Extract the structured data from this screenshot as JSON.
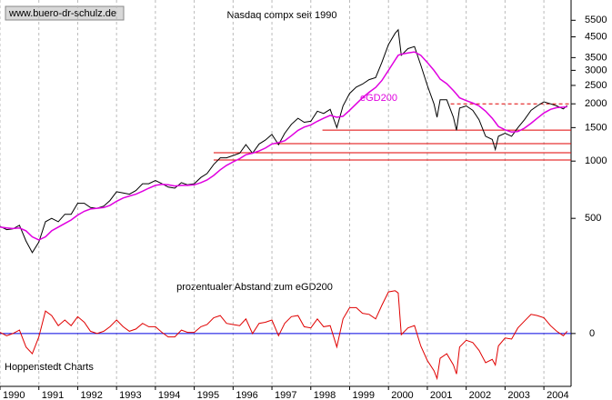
{
  "chart_data": [
    {
      "type": "line",
      "title": "Nasdaq compx seit 1990",
      "source": "www.buero-dr-schulz.de",
      "log_scale": true,
      "xlim": [
        1990,
        2004.7
      ],
      "ylim": [
        245,
        7030
      ],
      "xticks": [
        1990,
        1991,
        1992,
        1993,
        1994,
        1995,
        1996,
        1997,
        1998,
        1999,
        2000,
        2001,
        2002,
        2003,
        2004
      ],
      "yticks": [
        500,
        1000,
        1500,
        2000,
        2500,
        3000,
        3500,
        4500,
        5500
      ],
      "x": [
        1990.0,
        1990.17,
        1990.33,
        1990.5,
        1990.67,
        1990.83,
        1991.0,
        1991.17,
        1991.33,
        1991.5,
        1991.67,
        1991.83,
        1992.0,
        1992.17,
        1992.33,
        1992.5,
        1992.67,
        1992.83,
        1993.0,
        1993.17,
        1993.33,
        1993.5,
        1993.67,
        1993.83,
        1994.0,
        1994.17,
        1994.33,
        1994.5,
        1994.67,
        1994.83,
        1995.0,
        1995.17,
        1995.33,
        1995.5,
        1995.67,
        1995.83,
        1996.0,
        1996.17,
        1996.33,
        1996.5,
        1996.67,
        1996.83,
        1997.0,
        1997.17,
        1997.33,
        1997.5,
        1997.67,
        1997.83,
        1998.0,
        1998.17,
        1998.33,
        1998.5,
        1998.67,
        1998.83,
        1999.0,
        1999.17,
        1999.33,
        1999.5,
        1999.67,
        1999.83,
        2000.0,
        2000.17,
        2000.25,
        2000.33,
        2000.5,
        2000.67,
        2000.83,
        2001.0,
        2001.17,
        2001.25,
        2001.33,
        2001.5,
        2001.67,
        2001.75,
        2001.83,
        2002.0,
        2002.17,
        2002.33,
        2002.5,
        2002.67,
        2002.75,
        2002.83,
        2003.0,
        2003.17,
        2003.33,
        2003.5,
        2003.67,
        2003.83,
        2004.0,
        2004.17,
        2004.33,
        2004.5,
        2004.6
      ],
      "series": [
        {
          "color": "#000000",
          "values": [
            454,
            436,
            440,
            460,
            380,
            330,
            375,
            480,
            500,
            480,
            525,
            525,
            600,
            600,
            570,
            565,
            580,
            620,
            690,
            680,
            670,
            700,
            760,
            760,
            790,
            760,
            730,
            720,
            770,
            750,
            760,
            820,
            860,
            960,
            1040,
            1040,
            1070,
            1100,
            1220,
            1100,
            1230,
            1290,
            1380,
            1220,
            1400,
            1560,
            1680,
            1600,
            1620,
            1830,
            1780,
            1870,
            1500,
            1950,
            2270,
            2450,
            2540,
            2680,
            2750,
            3300,
            4100,
            4700,
            4900,
            3600,
            3900,
            4000,
            3200,
            2500,
            2000,
            1700,
            2100,
            2100,
            1700,
            1450,
            1900,
            1950,
            1850,
            1650,
            1350,
            1300,
            1150,
            1350,
            1400,
            1350,
            1500,
            1650,
            1850,
            1950,
            2050,
            2000,
            1950,
            1880,
            1960
          ]
        },
        {
          "name": "eGD200",
          "color": "#e000e0",
          "values": [
            450,
            445,
            442,
            445,
            430,
            400,
            385,
            400,
            430,
            450,
            470,
            490,
            520,
            545,
            560,
            565,
            570,
            585,
            615,
            640,
            655,
            670,
            695,
            720,
            745,
            755,
            750,
            740,
            745,
            745,
            750,
            770,
            795,
            840,
            900,
            950,
            990,
            1030,
            1080,
            1100,
            1130,
            1170,
            1230,
            1250,
            1280,
            1360,
            1450,
            1510,
            1550,
            1620,
            1680,
            1740,
            1700,
            1720,
            1850,
            2000,
            2150,
            2300,
            2440,
            2650,
            3000,
            3400,
            3600,
            3650,
            3700,
            3750,
            3600,
            3300,
            3000,
            2850,
            2700,
            2550,
            2350,
            2250,
            2150,
            2080,
            2020,
            1950,
            1830,
            1680,
            1600,
            1520,
            1460,
            1420,
            1430,
            1490,
            1580,
            1680,
            1790,
            1870,
            1910,
            1920,
            1930
          ]
        }
      ],
      "levels": [
        {
          "value": 2000,
          "from": 2001.6,
          "color": "#e00000",
          "dashed": true
        },
        {
          "value": 1455,
          "from": 1998.3,
          "color": "#e00000",
          "dashed": false
        },
        {
          "value": 1236,
          "from": 1997.0,
          "color": "#e00000",
          "dashed": false
        },
        {
          "value": 1107,
          "from": 1995.5,
          "color": "#e00000",
          "dashed": false
        },
        {
          "value": 1014,
          "from": 1995.5,
          "color": "#e00000",
          "dashed": false
        }
      ]
    },
    {
      "type": "line",
      "title": "prozentualer Abstand zum eGD200",
      "footer": "Hoppenstedt Charts",
      "xlim": [
        1990,
        2004.7
      ],
      "ylim": [
        -47,
        50
      ],
      "yticks": [
        0
      ],
      "zero_line_color": "#0000e0",
      "x": [
        1990.0,
        1990.17,
        1990.33,
        1990.5,
        1990.67,
        1990.83,
        1991.0,
        1991.17,
        1991.33,
        1991.5,
        1991.67,
        1991.83,
        1992.0,
        1992.17,
        1992.33,
        1992.5,
        1992.67,
        1992.83,
        1993.0,
        1993.17,
        1993.33,
        1993.5,
        1993.67,
        1993.83,
        1994.0,
        1994.17,
        1994.33,
        1994.5,
        1994.67,
        1994.83,
        1995.0,
        1995.17,
        1995.33,
        1995.5,
        1995.67,
        1995.83,
        1996.0,
        1996.17,
        1996.33,
        1996.5,
        1996.67,
        1996.83,
        1997.0,
        1997.17,
        1997.33,
        1997.5,
        1997.67,
        1997.83,
        1998.0,
        1998.17,
        1998.33,
        1998.5,
        1998.67,
        1998.83,
        1999.0,
        1999.17,
        1999.33,
        1999.5,
        1999.67,
        1999.83,
        2000.0,
        2000.17,
        2000.25,
        2000.33,
        2000.5,
        2000.67,
        2000.83,
        2001.0,
        2001.17,
        2001.25,
        2001.33,
        2001.5,
        2001.67,
        2001.75,
        2001.83,
        2002.0,
        2002.17,
        2002.33,
        2002.5,
        2002.67,
        2002.75,
        2002.83,
        2003.0,
        2003.17,
        2003.33,
        2003.5,
        2003.67,
        2003.83,
        2004.0,
        2004.17,
        2004.33,
        2004.5,
        2004.6
      ],
      "series": [
        {
          "color": "#e00000",
          "values": [
            1,
            -2,
            0,
            3,
            -12,
            -18,
            -3,
            20,
            16,
            7,
            12,
            7,
            15,
            10,
            2,
            0,
            2,
            6,
            12,
            6,
            2,
            4,
            9,
            6,
            6,
            1,
            -3,
            -3,
            3,
            1,
            1,
            6,
            8,
            14,
            16,
            9,
            8,
            7,
            13,
            0,
            9,
            10,
            12,
            -2,
            9,
            15,
            16,
            6,
            5,
            13,
            6,
            7,
            -12,
            13,
            23,
            23,
            18,
            17,
            13,
            25,
            37,
            38,
            36,
            -1,
            5,
            7,
            -11,
            -24,
            -33,
            -40,
            -22,
            -18,
            -28,
            -36,
            -12,
            -6,
            -8,
            -15,
            -26,
            -23,
            -28,
            -11,
            -4,
            -5,
            5,
            11,
            17,
            16,
            14,
            7,
            2,
            -2,
            2
          ]
        }
      ]
    }
  ]
}
